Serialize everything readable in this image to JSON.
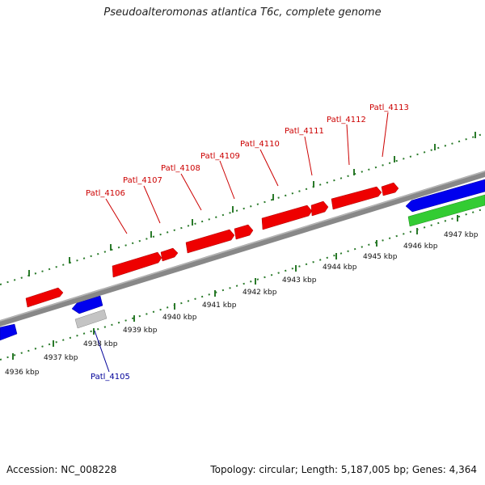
{
  "title": "Pseudoalteromonas atlantica T6c, complete genome",
  "footer": {
    "accession": "Accession: NC_008228",
    "topology": "Topology: circular",
    "length": "Length: 5,187,005 bp",
    "genes": "Genes: 4,364"
  },
  "colors": {
    "forward": "#ee0000",
    "reverse": "#0000ee",
    "rna": "#33cc33",
    "pseudo": "#bbbbbb",
    "axis": "#808080",
    "ticks": "#2a7a2a",
    "label_forward": "#cc0000",
    "label_reverse": "#000099"
  },
  "axis_ticks": [
    {
      "kbp": 4936,
      "label": "4936 kbp"
    },
    {
      "kbp": 4937,
      "label": "4937 kbp"
    },
    {
      "kbp": 4938,
      "label": "4938 kbp"
    },
    {
      "kbp": 4939,
      "label": "4939 kbp"
    },
    {
      "kbp": 4940,
      "label": "4940 kbp"
    },
    {
      "kbp": 4941,
      "label": "4941 kbp"
    },
    {
      "kbp": 4942,
      "label": "4942 kbp"
    },
    {
      "kbp": 4943,
      "label": "4943 kbp"
    },
    {
      "kbp": 4944,
      "label": "4944 kbp"
    },
    {
      "kbp": 4945,
      "label": "4945 kbp"
    },
    {
      "kbp": 4946,
      "label": "4946 kbp"
    },
    {
      "kbp": 4947,
      "label": "4947 kbp"
    }
  ],
  "gene_labels": [
    {
      "name": "Patl_4105",
      "strand": "reverse"
    },
    {
      "name": "Patl_4106",
      "strand": "forward"
    },
    {
      "name": "Patl_4107",
      "strand": "forward"
    },
    {
      "name": "Patl_4108",
      "strand": "forward"
    },
    {
      "name": "Patl_4109",
      "strand": "forward"
    },
    {
      "name": "Patl_4110",
      "strand": "forward"
    },
    {
      "name": "Patl_4111",
      "strand": "forward"
    },
    {
      "name": "Patl_4112",
      "strand": "forward"
    },
    {
      "name": "Patl_4113",
      "strand": "forward"
    }
  ]
}
